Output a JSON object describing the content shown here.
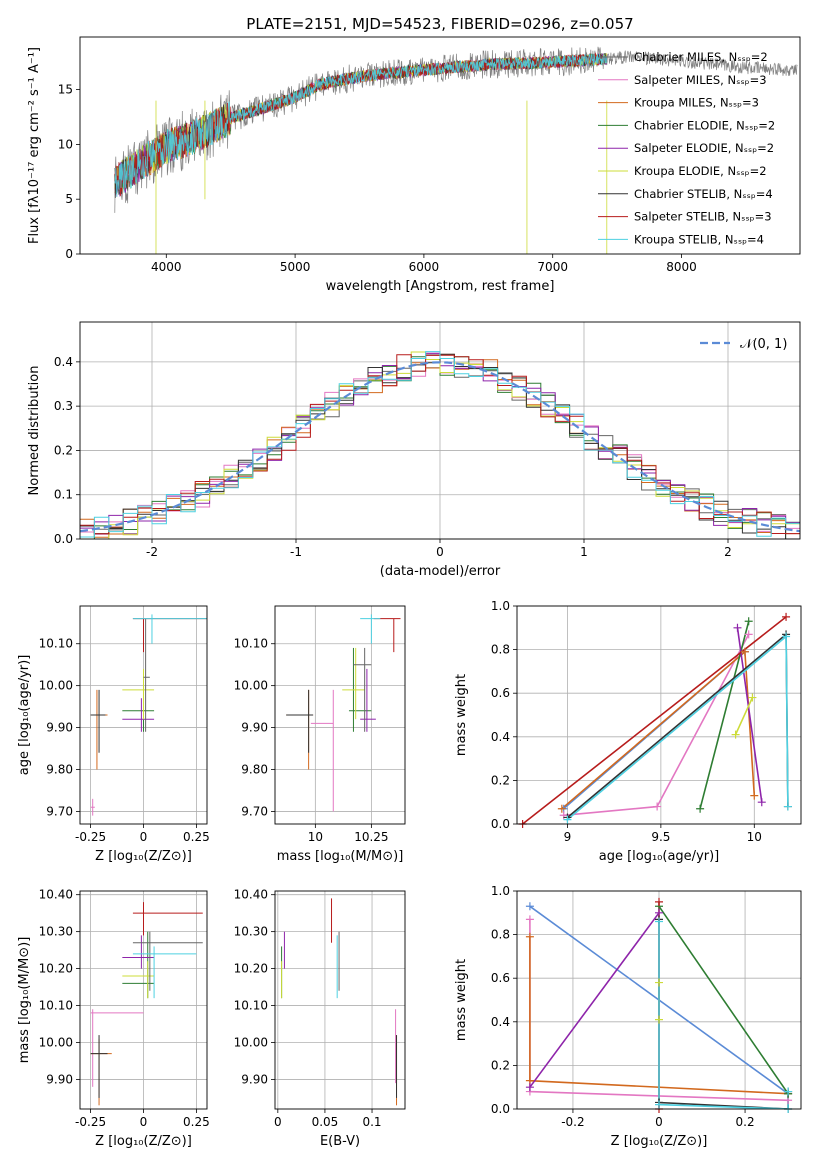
{
  "title": "PLATE=2151, MJD=54523, FIBERID=0296, z=0.057",
  "colors": [
    "#666666",
    "#e377c2",
    "#d2691e",
    "#2e7d32",
    "#8e24aa",
    "#cddc39",
    "#333333",
    "#b71c1c",
    "#4dd0e1"
  ],
  "chart_data": [
    {
      "id": "spectrum",
      "type": "line",
      "xlabel": "wavelength [Angstrom, rest frame]",
      "ylabel": "Flux [fλ10⁻¹⁷ erg cm⁻² s⁻¹ A⁻¹]",
      "xlim": [
        3330,
        8920
      ],
      "ylim": [
        0,
        19.8
      ],
      "xticks": [
        4000,
        5000,
        6000,
        7000,
        8000
      ],
      "yticks": [
        0,
        5,
        10,
        15
      ],
      "grid": false,
      "legend_position": "top-right",
      "legend": [
        "Chabrier MILES, N_SSP=2",
        "Salpeter MILES, N_SSP=3",
        "Kroupa MILES, N_SSP=3",
        "Chabrier ELODIE, N_SSP=2",
        "Salpeter ELODIE, N_SSP=2",
        "Kroupa ELODIE, N_SSP=2",
        "Chabrier STELIB, N_SSP=4",
        "Salpeter STELIB, N_SSP=3",
        "Kroupa STELIB, N_SSP=4"
      ],
      "continuum": [
        [
          3600,
          6.5
        ],
        [
          3800,
          8.2
        ],
        [
          4000,
          9.8
        ],
        [
          4200,
          10.6
        ],
        [
          4500,
          12.4
        ],
        [
          4800,
          13.5
        ],
        [
          5000,
          14.3
        ],
        [
          5200,
          15.5
        ],
        [
          5500,
          16.2
        ],
        [
          6000,
          16.8
        ],
        [
          6500,
          17.3
        ],
        [
          7000,
          17.5
        ],
        [
          7400,
          17.8
        ],
        [
          7600,
          18.0
        ],
        [
          8000,
          17.6
        ],
        [
          8500,
          17.0
        ],
        [
          8900,
          16.8
        ]
      ]
    },
    {
      "id": "residuals",
      "type": "line",
      "xlabel": "(data-model)/error",
      "ylabel": "Normed distribution",
      "xlim": [
        -2.5,
        2.5
      ],
      "ylim": [
        0,
        0.49
      ],
      "xticks": [
        -2,
        -1,
        0,
        1,
        2
      ],
      "yticks": [
        0.0,
        0.1,
        0.2,
        0.3,
        0.4
      ],
      "grid": true,
      "legend_position": "top-right",
      "gaussian_label": "𝒩(0, 1)"
    },
    {
      "id": "z-age",
      "type": "scatter",
      "xlabel": "Z [log₁₀(Z/Z⊙)]",
      "ylabel": "age  [log₁₀(age/yr)]",
      "xlim": [
        -0.3,
        0.3
      ],
      "ylim": [
        9.67,
        10.19
      ],
      "xticks": [
        -0.25,
        0.0,
        0.25
      ],
      "yticks": [
        9.7,
        9.8,
        9.9,
        10.0,
        10.1
      ],
      "grid": true,
      "points": [
        {
          "c": 1,
          "x": -0.24,
          "y": 9.71,
          "x0": -0.25,
          "x1": -0.23,
          "y0": 9.69,
          "y1": 9.73
        },
        {
          "c": 2,
          "x": -0.22,
          "y": 9.93,
          "x0": -0.25,
          "x1": -0.17,
          "y0": 9.8,
          "y1": 9.99
        },
        {
          "c": 6,
          "x": -0.21,
          "y": 9.93,
          "x0": -0.25,
          "x1": -0.18,
          "y0": 9.84,
          "y1": 9.99
        },
        {
          "c": 3,
          "x": 0.0,
          "y": 9.94,
          "x0": -0.1,
          "x1": 0.05,
          "y0": 9.89,
          "y1": 10.0
        },
        {
          "c": 4,
          "x": -0.01,
          "y": 9.92,
          "x0": -0.1,
          "x1": 0.05,
          "y0": 9.89,
          "y1": 9.97
        },
        {
          "c": 5,
          "x": 0.0,
          "y": 9.99,
          "x0": -0.1,
          "x1": 0.05,
          "y0": 9.92,
          "y1": 10.04
        },
        {
          "c": 0,
          "x": 0.01,
          "y": 10.02,
          "x0": 0.0,
          "x1": 0.03,
          "y0": 9.89,
          "y1": 10.16
        },
        {
          "c": 7,
          "x": 0.0,
          "y": 10.16,
          "x0": -0.05,
          "x1": 0.3,
          "y0": 10.08,
          "y1": 10.16
        },
        {
          "c": 8,
          "x": 0.04,
          "y": 10.16,
          "x0": -0.05,
          "x1": 0.3,
          "y0": 10.1,
          "y1": 10.17
        }
      ]
    },
    {
      "id": "mass-age",
      "type": "scatter",
      "xlabel": "mass [log₁₀(M/M⊙)]",
      "ylabel": "",
      "xlim": [
        9.82,
        10.4
      ],
      "ylim": [
        9.67,
        10.19
      ],
      "xticks": [
        10.0,
        10.25
      ],
      "yticks": [
        9.7,
        9.8,
        9.9,
        10.0,
        10.1
      ],
      "grid": true,
      "points": [
        {
          "c": 1,
          "x": 10.08,
          "y": 9.91,
          "x0": 9.98,
          "x1": 10.08,
          "y0": 9.7,
          "y1": 9.99
        },
        {
          "c": 2,
          "x": 9.97,
          "y": 9.93,
          "x0": 9.87,
          "x1": 9.99,
          "y0": 9.8,
          "y1": 9.99
        },
        {
          "c": 6,
          "x": 9.97,
          "y": 9.93,
          "x0": 9.87,
          "x1": 9.99,
          "y0": 9.84,
          "y1": 9.99
        },
        {
          "c": 3,
          "x": 10.17,
          "y": 9.94,
          "x0": 10.15,
          "x1": 10.25,
          "y0": 9.89,
          "y1": 10.09
        },
        {
          "c": 4,
          "x": 10.23,
          "y": 9.92,
          "x0": 10.2,
          "x1": 10.27,
          "y0": 9.89,
          "y1": 10.04
        },
        {
          "c": 5,
          "x": 10.18,
          "y": 9.99,
          "x0": 10.12,
          "x1": 10.22,
          "y0": 9.92,
          "y1": 10.09
        },
        {
          "c": 0,
          "x": 10.22,
          "y": 10.05,
          "x0": 10.17,
          "x1": 10.25,
          "y0": 9.89,
          "y1": 10.09
        },
        {
          "c": 7,
          "x": 10.35,
          "y": 10.16,
          "x0": 10.26,
          "x1": 10.38,
          "y0": 10.08,
          "y1": 10.16
        },
        {
          "c": 8,
          "x": 10.25,
          "y": 10.16,
          "x0": 10.2,
          "x1": 10.29,
          "y0": 10.1,
          "y1": 10.17
        }
      ]
    },
    {
      "id": "age-weight",
      "type": "line",
      "xlabel": "age  [log₁₀(age/yr)]",
      "ylabel": "mass weight",
      "xlim": [
        8.73,
        10.25
      ],
      "ylim": [
        0.0,
        1.0
      ],
      "xticks": [
        9.0,
        9.5,
        10.0
      ],
      "yticks": [
        0.0,
        0.2,
        0.4,
        0.6,
        0.8,
        1.0
      ],
      "grid": true,
      "series": [
        {
          "c": 9,
          "x": [
            8.98,
            9.95
          ],
          "y": [
            0.07,
            0.79
          ]
        },
        {
          "c": 1,
          "x": [
            8.98,
            9.48,
            9.97
          ],
          "y": [
            0.04,
            0.08,
            0.87
          ]
        },
        {
          "c": 2,
          "x": [
            8.97,
            9.95,
            10.0
          ],
          "y": [
            0.07,
            0.79,
            0.13
          ]
        },
        {
          "c": 3,
          "x": [
            9.71,
            9.97
          ],
          "y": [
            0.07,
            0.93
          ]
        },
        {
          "c": 4,
          "x": [
            9.91,
            10.04
          ],
          "y": [
            0.9,
            0.1
          ]
        },
        {
          "c": 5,
          "x": [
            9.9,
            9.99
          ],
          "y": [
            0.41,
            0.58
          ]
        },
        {
          "c": 6,
          "x": [
            9.0,
            10.17,
            10.18
          ],
          "y": [
            0.03,
            0.87,
            0.08
          ]
        },
        {
          "c": 7,
          "x": [
            8.76,
            10.17
          ],
          "y": [
            0.0,
            0.95
          ]
        },
        {
          "c": 8,
          "x": [
            9.0,
            10.17,
            10.18
          ],
          "y": [
            0.02,
            0.86,
            0.08
          ]
        }
      ]
    },
    {
      "id": "z-mass",
      "type": "scatter",
      "xlabel": "Z [log₁₀(Z/Z⊙)]",
      "ylabel": "mass [log₁₀(M/M⊙)]",
      "xlim": [
        -0.3,
        0.3
      ],
      "ylim": [
        9.82,
        10.41
      ],
      "xticks": [
        -0.25,
        0.0,
        0.25
      ],
      "yticks": [
        9.9,
        10.0,
        10.1,
        10.2,
        10.3,
        10.4
      ],
      "grid": true,
      "points": [
        {
          "c": 1,
          "x": -0.24,
          "y": 10.08,
          "x0": -0.25,
          "x1": 0.0,
          "y0": 9.88,
          "y1": 10.09
        },
        {
          "c": 2,
          "x": -0.21,
          "y": 9.97,
          "x0": -0.25,
          "x1": -0.15,
          "y0": 9.83,
          "y1": 10.01
        },
        {
          "c": 6,
          "x": -0.21,
          "y": 9.97,
          "x0": -0.25,
          "x1": -0.17,
          "y0": 9.85,
          "y1": 10.02
        },
        {
          "c": 3,
          "x": 0.02,
          "y": 10.16,
          "x0": -0.1,
          "x1": 0.05,
          "y0": 10.12,
          "y1": 10.3
        },
        {
          "c": 4,
          "x": -0.01,
          "y": 10.23,
          "x0": -0.1,
          "x1": 0.05,
          "y0": 10.2,
          "y1": 10.29
        },
        {
          "c": 5,
          "x": 0.02,
          "y": 10.18,
          "x0": -0.1,
          "x1": 0.05,
          "y0": 10.12,
          "y1": 10.22
        },
        {
          "c": 0,
          "x": 0.03,
          "y": 10.27,
          "x0": -0.05,
          "x1": 0.28,
          "y0": 10.14,
          "y1": 10.3
        },
        {
          "c": 7,
          "x": 0.0,
          "y": 10.35,
          "x0": -0.05,
          "x1": 0.28,
          "y0": 10.29,
          "y1": 10.38
        },
        {
          "c": 8,
          "x": 0.05,
          "y": 10.24,
          "x0": -0.05,
          "x1": 0.25,
          "y0": 10.12,
          "y1": 10.26
        }
      ]
    },
    {
      "id": "ebv-mass",
      "type": "scatter",
      "xlabel": "E(B-V)",
      "ylabel": "",
      "xlim": [
        -0.003,
        0.135
      ],
      "ylim": [
        9.82,
        10.41
      ],
      "xticks": [
        0.0,
        0.05,
        0.1
      ],
      "yticks": [
        9.9,
        10.0,
        10.1,
        10.2,
        10.3,
        10.4
      ],
      "grid": true,
      "points": [
        {
          "c": 1,
          "x": 0.125,
          "y": 10.0,
          "y0": 9.89,
          "y1": 10.09
        },
        {
          "c": 2,
          "x": 0.126,
          "y": 9.95,
          "y0": 9.83,
          "y1": 10.02
        },
        {
          "c": 6,
          "x": 0.126,
          "y": 9.95,
          "y0": 9.85,
          "y1": 10.02
        },
        {
          "c": 3,
          "x": 0.004,
          "y": 10.2,
          "y0": 10.12,
          "y1": 10.26
        },
        {
          "c": 4,
          "x": 0.007,
          "y": 10.23,
          "y0": 10.2,
          "y1": 10.3
        },
        {
          "c": 5,
          "x": 0.004,
          "y": 10.17,
          "y0": 10.12,
          "y1": 10.22
        },
        {
          "c": 0,
          "x": 0.065,
          "y": 10.27,
          "y0": 10.14,
          "y1": 10.3
        },
        {
          "c": 7,
          "x": 0.057,
          "y": 10.33,
          "y0": 10.27,
          "y1": 10.39
        },
        {
          "c": 8,
          "x": 0.063,
          "y": 10.22,
          "y0": 10.12,
          "y1": 10.29
        }
      ]
    },
    {
      "id": "z-weight",
      "type": "line",
      "xlabel": "Z [log₁₀(Z/Z⊙)]",
      "ylabel": "mass weight",
      "xlim": [
        -0.33,
        0.33
      ],
      "ylim": [
        0.0,
        1.0
      ],
      "xticks": [
        -0.2,
        0.0,
        0.2
      ],
      "yticks": [
        0.0,
        0.2,
        0.4,
        0.6,
        0.8,
        1.0
      ],
      "grid": true,
      "series": [
        {
          "c": 9,
          "x": [
            -0.3,
            0.3
          ],
          "y": [
            0.93,
            0.07
          ]
        },
        {
          "c": 1,
          "x": [
            -0.3,
            -0.3,
            0.3
          ],
          "y": [
            0.87,
            0.08,
            0.04
          ]
        },
        {
          "c": 2,
          "x": [
            -0.3,
            -0.3,
            0.3
          ],
          "y": [
            0.79,
            0.13,
            0.07
          ]
        },
        {
          "c": 3,
          "x": [
            0.0,
            0.3
          ],
          "y": [
            0.93,
            0.07
          ]
        },
        {
          "c": 4,
          "x": [
            -0.3,
            0.0
          ],
          "y": [
            0.1,
            0.9
          ]
        },
        {
          "c": 5,
          "x": [
            0.0,
            0.0
          ],
          "y": [
            0.58,
            0.41
          ]
        },
        {
          "c": 6,
          "x": [
            0.0,
            0.0,
            0.3,
            0.3
          ],
          "y": [
            0.87,
            0.03,
            0.0,
            0.08
          ]
        },
        {
          "c": 7,
          "x": [
            0.0,
            0.0
          ],
          "y": [
            0.95,
            0.0
          ]
        },
        {
          "c": 8,
          "x": [
            0.0,
            0.0,
            0.3,
            0.3
          ],
          "y": [
            0.86,
            0.02,
            0.0,
            0.08
          ]
        }
      ]
    }
  ]
}
